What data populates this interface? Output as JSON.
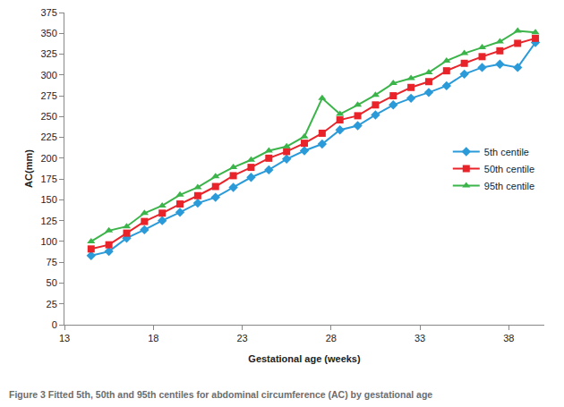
{
  "chart_data": {
    "type": "line",
    "title": "Figure 3 Fitted 5th, 50th and 95th centiles for abdominal circumference (AC) by gestational age",
    "x_label": "Gestational age (weeks)",
    "y_label": "AC(mm)",
    "x": [
      14.5,
      15.5,
      16.5,
      17.5,
      18.5,
      19.5,
      20.5,
      21.5,
      22.5,
      23.5,
      24.5,
      25.5,
      26.5,
      27.5,
      28.5,
      29.5,
      30.5,
      31.5,
      32.5,
      33.5,
      34.5,
      35.5,
      36.5,
      37.5,
      38.5,
      39.5
    ],
    "series": [
      {
        "name": "5th centile",
        "color": "#2b9ad8",
        "marker": "diamond",
        "values": [
          83,
          88,
          104,
          114,
          125,
          135,
          146,
          153,
          165,
          177,
          186,
          199,
          209,
          217,
          234,
          239,
          252,
          264,
          272,
          279,
          287,
          301,
          309,
          313,
          309,
          339
        ]
      },
      {
        "name": "50th centile",
        "color": "#e8242a",
        "marker": "square",
        "values": [
          91,
          96,
          110,
          124,
          134,
          145,
          155,
          166,
          179,
          189,
          200,
          208,
          218,
          230,
          246,
          251,
          264,
          275,
          285,
          292,
          305,
          314,
          322,
          329,
          338,
          344
        ]
      },
      {
        "name": "95th centile",
        "color": "#3bb44a",
        "marker": "triangle-up",
        "values": [
          100,
          113,
          118,
          134,
          143,
          156,
          165,
          178,
          189,
          198,
          209,
          214,
          226,
          272,
          253,
          264,
          276,
          290,
          296,
          303,
          317,
          326,
          333,
          340,
          353,
          351
        ]
      }
    ],
    "xlim": [
      13,
      40
    ],
    "xticks": [
      13,
      18,
      23,
      28,
      33,
      38
    ],
    "ylim": [
      0,
      375
    ],
    "yticks": [
      0,
      25,
      50,
      75,
      100,
      125,
      150,
      175,
      200,
      225,
      250,
      275,
      300,
      325,
      350,
      375
    ],
    "grid": false,
    "legend": "right"
  }
}
